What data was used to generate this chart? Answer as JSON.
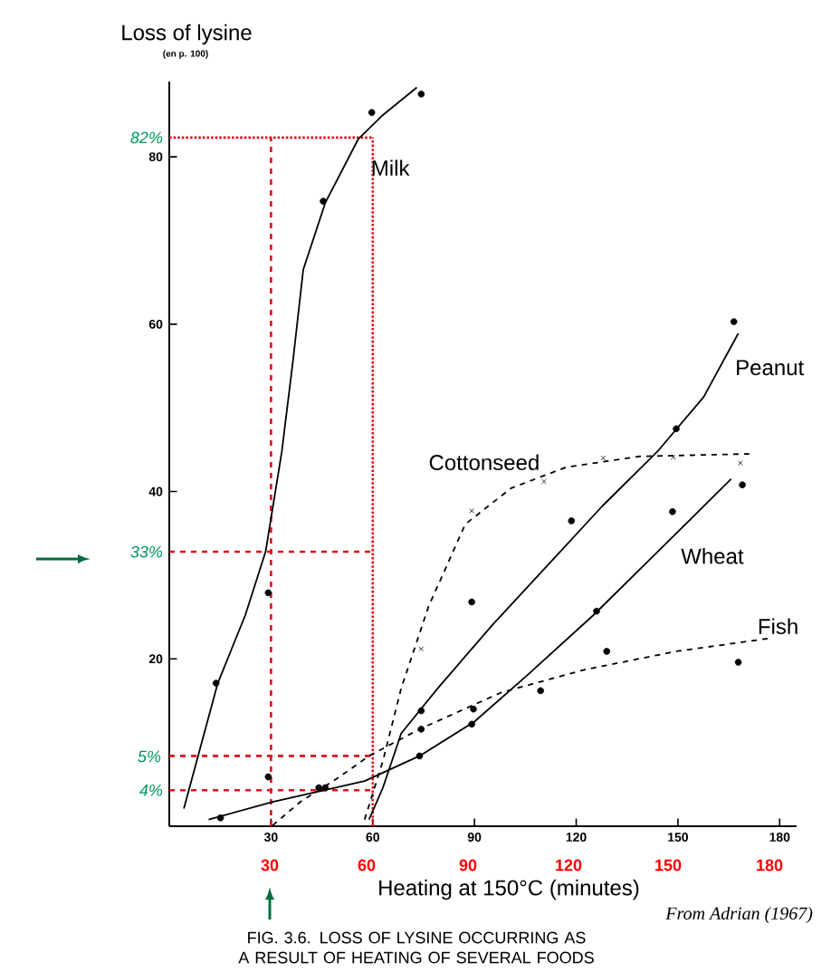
{
  "chart_data": {
    "type": "line",
    "title": "FIG. 3.6. LOSS OF LYSINE OCCURRING AS A RESULT OF HEATING OF SEVERAL FOODS",
    "xlabel": "Heating at 150°C (minutes)",
    "ylabel": "Loss of lysine",
    "annotations": [
      "(en p. 100)",
      "From Adrian (1967)",
      "5%",
      "30",
      "60",
      "90",
      "120",
      "150",
      "180"
    ],
    "xlim": [
      0,
      185
    ],
    "ylim": [
      0,
      89
    ],
    "xticks": [
      30,
      60,
      90,
      120,
      150,
      180
    ],
    "yticks": [
      20,
      40,
      60,
      80
    ],
    "ref_lines": [
      {
        "axis": "y",
        "value": 82.3,
        "label": "82%",
        "color": "#e0101a",
        "line_style": "dotted"
      },
      {
        "axis": "y",
        "value": 32.8,
        "label": "33%",
        "color": "#e0101a",
        "line_style": "dashed"
      },
      {
        "axis": "y",
        "value": 8.4,
        "label": null,
        "color": "#e0101a",
        "line_style": "dashed"
      },
      {
        "axis": "y",
        "value": 4.3,
        "label": "4%",
        "color": "#e0101a",
        "line_style": "dashed"
      },
      {
        "axis": "x",
        "value": 30,
        "label": null,
        "color": "#e0101a",
        "line_style": "dashed"
      },
      {
        "axis": "x",
        "value": 60,
        "label": null,
        "color": "#e0101a",
        "line_style": "dotted"
      }
    ],
    "series": [
      {
        "name": "Milk",
        "color": "#000000",
        "line_style": "solid",
        "marker": "none",
        "x": [
          4.3,
          14.3,
          22.4,
          28.4,
          33.2,
          36.5,
          39.5,
          46,
          55.7,
          63,
          73
        ],
        "values": [
          2.1,
          17.1,
          25.2,
          32.8,
          44.8,
          55.7,
          66.5,
          74.5,
          82.1,
          85,
          88.3
        ]
      },
      {
        "type": "scatter",
        "color": "#000000",
        "marker": "circle",
        "x": [
          13.8,
          29.2,
          45.4,
          59.7,
          74.3
        ],
        "values": [
          17.1,
          27.9,
          74.7,
          85.3,
          87.5
        ]
      },
      {
        "name": "Cottonseed",
        "color": "#000000",
        "line_style": "dashed",
        "marker": "none",
        "x": [
          57.6,
          63,
          68.4,
          76.5,
          87.3,
          100.8,
          117,
          138.6,
          171
        ],
        "values": [
          0.8,
          7.8,
          16.5,
          26.3,
          36.1,
          40.4,
          42.9,
          44.2,
          44.5
        ]
      },
      {
        "type": "scatter",
        "color": "#000000",
        "marker": "cross",
        "x": [
          74.3,
          89.2,
          110.5,
          128,
          148.6,
          168.4
        ],
        "values": [
          21.2,
          37.7,
          41.2,
          44,
          44.1,
          43.4
        ]
      },
      {
        "name": "Peanut",
        "color": "#000000",
        "line_style": "solid",
        "marker": "none",
        "x": [
          58.9,
          63,
          68.4,
          79.2,
          95.4,
          111.6,
          127.8,
          144,
          157.6,
          167.8
        ],
        "values": [
          0.8,
          4.6,
          11.1,
          16.5,
          24.1,
          31.2,
          38.3,
          44.8,
          51.3,
          58.9
        ]
      },
      {
        "type": "scatter",
        "color": "#000000",
        "marker": "circle",
        "x": [
          74.3,
          89.2,
          118.6,
          149.5,
          166.5
        ],
        "values": [
          13.8,
          26.8,
          36.5,
          47.5,
          60.3
        ]
      },
      {
        "name": "Wheat",
        "color": "#000000",
        "line_style": "solid",
        "marker": "none",
        "x": [
          11.6,
          30.5,
          57.6,
          73.8,
          90,
          106,
          125,
          144,
          165.7
        ],
        "values": [
          0.8,
          2.9,
          5.4,
          8.4,
          12.5,
          18.2,
          25.2,
          32.8,
          41.5
        ]
      },
      {
        "type": "scatter",
        "color": "#000000",
        "marker": "circle",
        "x": [
          15.1,
          46,
          73.8,
          89.2,
          126,
          148.4,
          169
        ],
        "values": [
          1,
          4.6,
          8.4,
          12.2,
          25.7,
          37.6,
          40.8
        ]
      },
      {
        "name": "Fish",
        "color": "#000000",
        "line_style": "dashed",
        "marker": "none",
        "x": [
          30.5,
          38.6,
          49.5,
          58.9,
          73.8,
          98,
          122.4,
          149.5,
          177.8
        ],
        "values": [
          0.1,
          2.9,
          5.7,
          8.4,
          11.6,
          16,
          18.7,
          20.9,
          22.5
        ]
      },
      {
        "type": "scatter",
        "color": "#000000",
        "marker": "circle",
        "x": [
          29.2,
          44.1,
          74.3,
          89.7,
          109.5,
          129,
          167.8
        ],
        "values": [
          5.9,
          4.6,
          11.6,
          14,
          16.2,
          20.9,
          19.6
        ]
      }
    ]
  }
}
